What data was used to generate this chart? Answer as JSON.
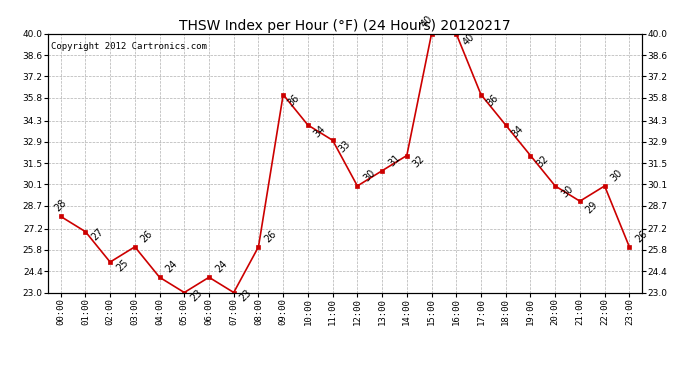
{
  "title": "THSW Index per Hour (°F) (24 Hours) 20120217",
  "copyright": "Copyright 2012 Cartronics.com",
  "hours": [
    0,
    1,
    2,
    3,
    4,
    5,
    6,
    7,
    8,
    9,
    10,
    11,
    12,
    13,
    14,
    15,
    16,
    17,
    18,
    19,
    20,
    21,
    22,
    23
  ],
  "values": [
    28,
    27,
    25,
    26,
    24,
    23,
    24,
    23,
    26,
    36,
    34,
    33,
    30,
    31,
    32,
    40,
    40,
    36,
    34,
    32,
    30,
    29,
    30,
    26
  ],
  "ylim_min": 23.0,
  "ylim_max": 40.0,
  "yticks": [
    23.0,
    24.4,
    25.8,
    27.2,
    28.7,
    30.1,
    31.5,
    32.9,
    34.3,
    35.8,
    37.2,
    38.6,
    40.0
  ],
  "line_color": "#cc0000",
  "marker_color": "#cc0000",
  "bg_color": "#ffffff",
  "grid_color": "#b0b0b0",
  "title_fontsize": 10,
  "label_fontsize": 7,
  "tick_fontsize": 6.5,
  "copyright_fontsize": 6.5
}
